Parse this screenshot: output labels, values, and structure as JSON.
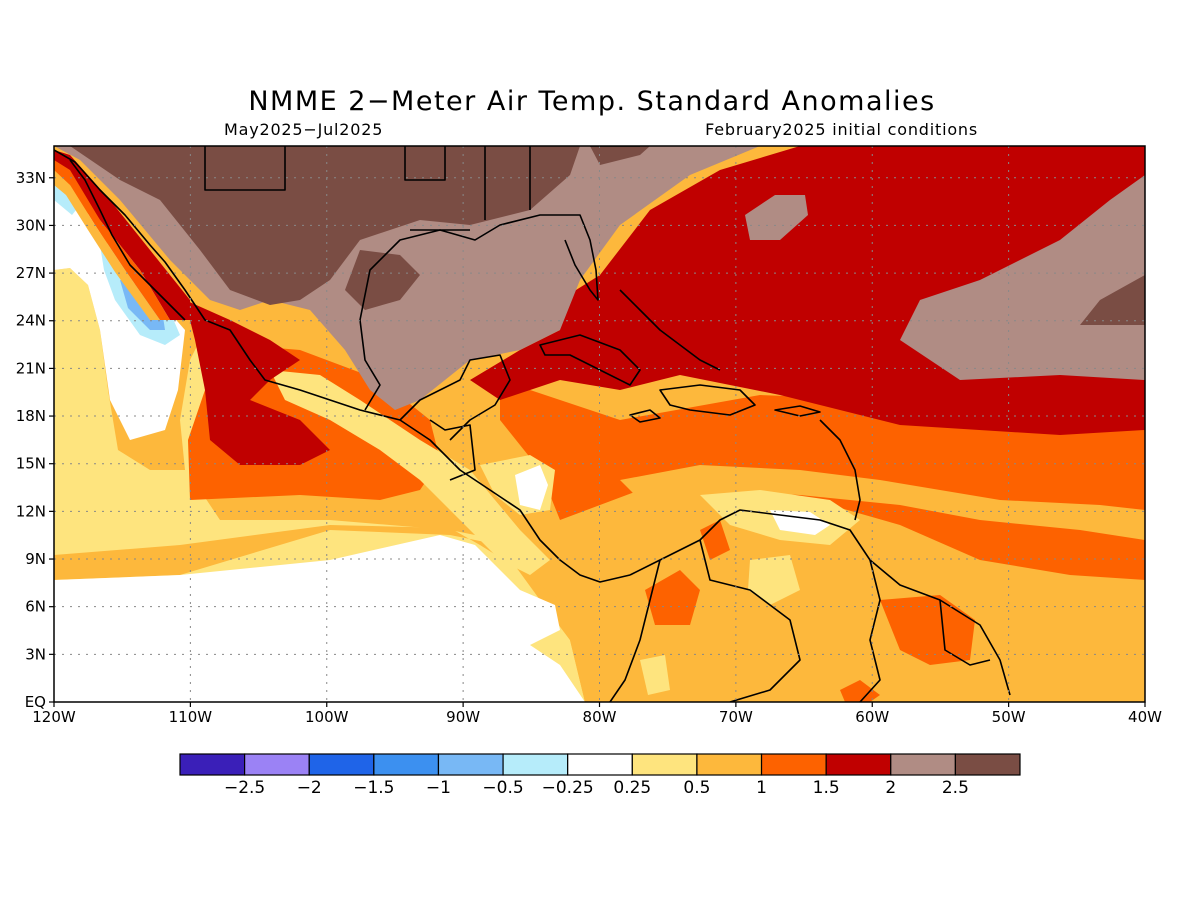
{
  "title": "NMME 2−Meter Air Temp. Standard Anomalies",
  "subtitle_left": "May2025−Jul2025",
  "subtitle_right": "February2025 initial conditions",
  "map": {
    "lon_range": [
      -120,
      -40
    ],
    "lat_range": [
      0,
      35
    ],
    "lon_ticks": [
      {
        "value": -120,
        "label": "120W"
      },
      {
        "value": -110,
        "label": "110W"
      },
      {
        "value": -100,
        "label": "100W"
      },
      {
        "value": -90,
        "label": "90W"
      },
      {
        "value": -80,
        "label": "80W"
      },
      {
        "value": -70,
        "label": "70W"
      },
      {
        "value": -60,
        "label": "60W"
      },
      {
        "value": -50,
        "label": "50W"
      },
      {
        "value": -40,
        "label": "40W"
      }
    ],
    "lat_ticks": [
      {
        "value": 0,
        "label": "EQ"
      },
      {
        "value": 3,
        "label": "3N"
      },
      {
        "value": 6,
        "label": "6N"
      },
      {
        "value": 9,
        "label": "9N"
      },
      {
        "value": 12,
        "label": "12N"
      },
      {
        "value": 15,
        "label": "15N"
      },
      {
        "value": 18,
        "label": "18N"
      },
      {
        "value": 21,
        "label": "21N"
      },
      {
        "value": 24,
        "label": "24N"
      },
      {
        "value": 27,
        "label": "27N"
      },
      {
        "value": 30,
        "label": "30N"
      },
      {
        "value": 33,
        "label": "33N"
      }
    ],
    "grid": true
  },
  "colorbar": {
    "colors": [
      "#3a1fb8",
      "#9b82f5",
      "#1f64e8",
      "#3c90f0",
      "#78b8f5",
      "#b6ecfa",
      "#ffffff",
      "#fee47e",
      "#fdb83c",
      "#fd6200",
      "#c00000",
      "#b08c84",
      "#7a4d44"
    ],
    "labels": [
      "−2.5",
      "−2",
      "−1.5",
      "−1",
      "−0.5",
      "−0.25",
      "0.25",
      "0.5",
      "1",
      "1.5",
      "2",
      "2.5"
    ]
  }
}
